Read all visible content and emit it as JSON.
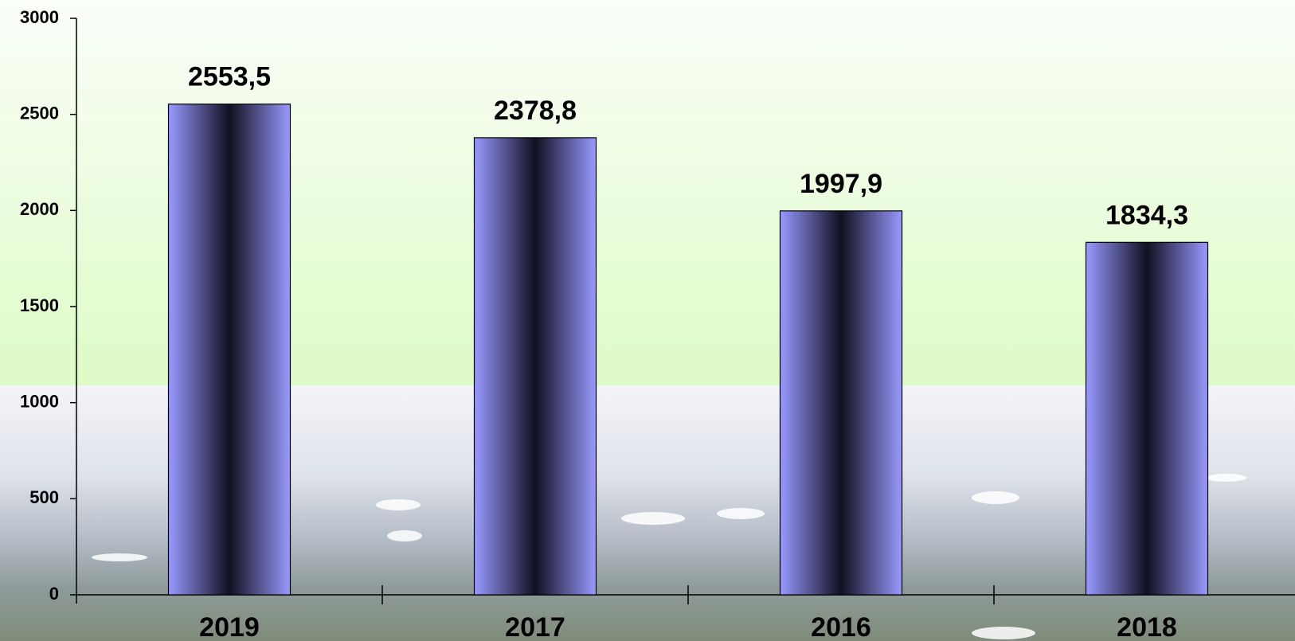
{
  "chart_data": {
    "type": "bar",
    "categories": [
      "2019",
      "2017",
      "2016",
      "2018"
    ],
    "values": [
      2553.5,
      2378.8,
      1997.9,
      1834.3
    ],
    "value_labels": [
      "2553,5",
      "2378,8",
      "1997,9",
      "1834,3"
    ],
    "color": "#9999ff",
    "ylim": [
      0,
      3000
    ],
    "yticks": [
      0,
      500,
      1000,
      1500,
      2000,
      2500,
      3000
    ]
  }
}
